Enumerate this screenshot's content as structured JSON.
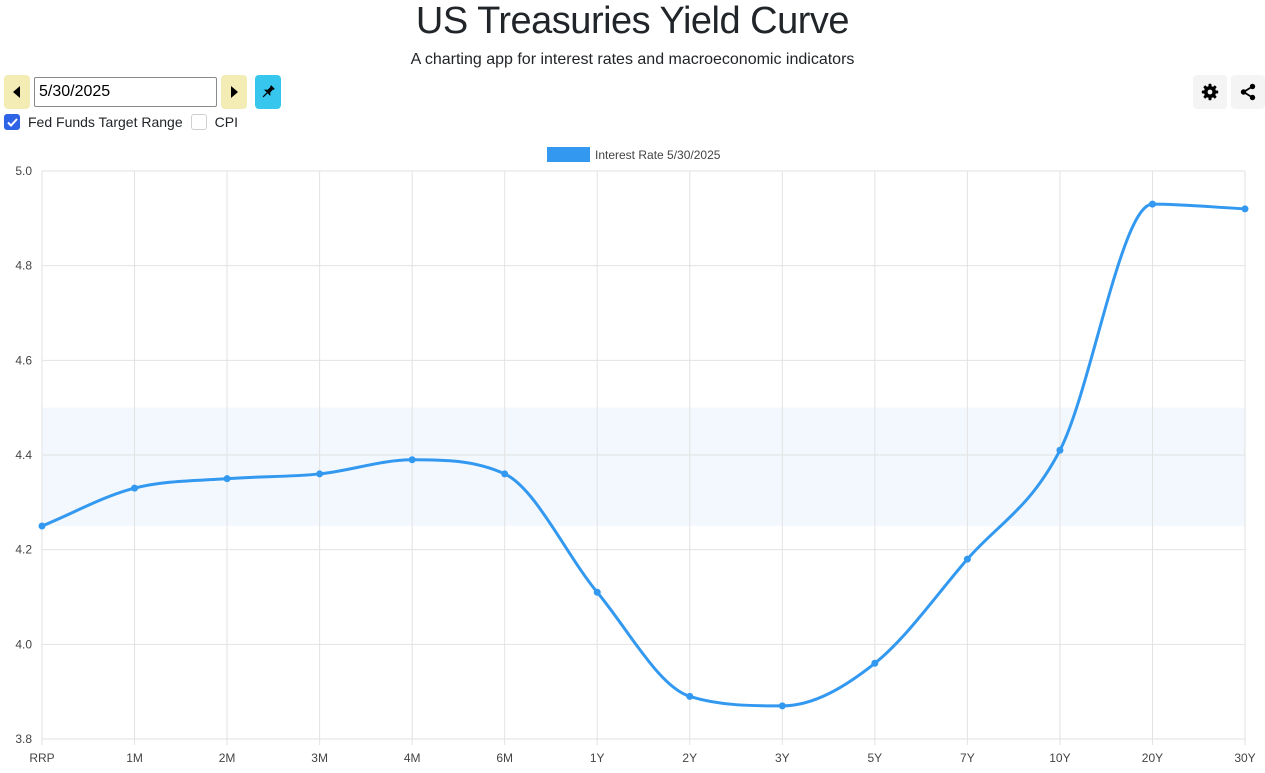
{
  "header": {
    "title": "US Treasuries Yield Curve",
    "subtitle": "A charting app for interest rates and macroeconomic indicators"
  },
  "controls": {
    "date_value": "5/30/2025",
    "prev_icon": "caret-left-icon",
    "next_icon": "caret-right-icon",
    "pin_icon": "pin-icon",
    "settings_icon": "gear-icon",
    "share_icon": "share-icon"
  },
  "options": {
    "fed_funds_label": "Fed Funds Target Range",
    "fed_funds_checked": true,
    "cpi_label": "CPI",
    "cpi_checked": false
  },
  "colors": {
    "series": "#3399f0",
    "band": "#f3f8fe",
    "nav_button": "#f3edb5",
    "pin_button": "#36c6ee",
    "checkbox": "#2f64e6"
  },
  "chart_data": {
    "type": "line",
    "categories": [
      "RRP",
      "1M",
      "2M",
      "3M",
      "4M",
      "6M",
      "1Y",
      "2Y",
      "3Y",
      "5Y",
      "7Y",
      "10Y",
      "20Y",
      "30Y"
    ],
    "series": [
      {
        "name": "Interest Rate 5/30/2025",
        "values": [
          4.25,
          4.33,
          4.35,
          4.36,
          4.39,
          4.36,
          4.11,
          3.89,
          3.87,
          3.96,
          4.18,
          4.41,
          4.93,
          4.92
        ]
      }
    ],
    "band": {
      "low": 4.25,
      "high": 4.5
    },
    "ylim": [
      3.8,
      5.0
    ],
    "yticks": [
      "3.8",
      "4.0",
      "4.2",
      "4.4",
      "4.6",
      "4.8",
      "5.0"
    ],
    "grid": true,
    "legend": "top-center"
  }
}
